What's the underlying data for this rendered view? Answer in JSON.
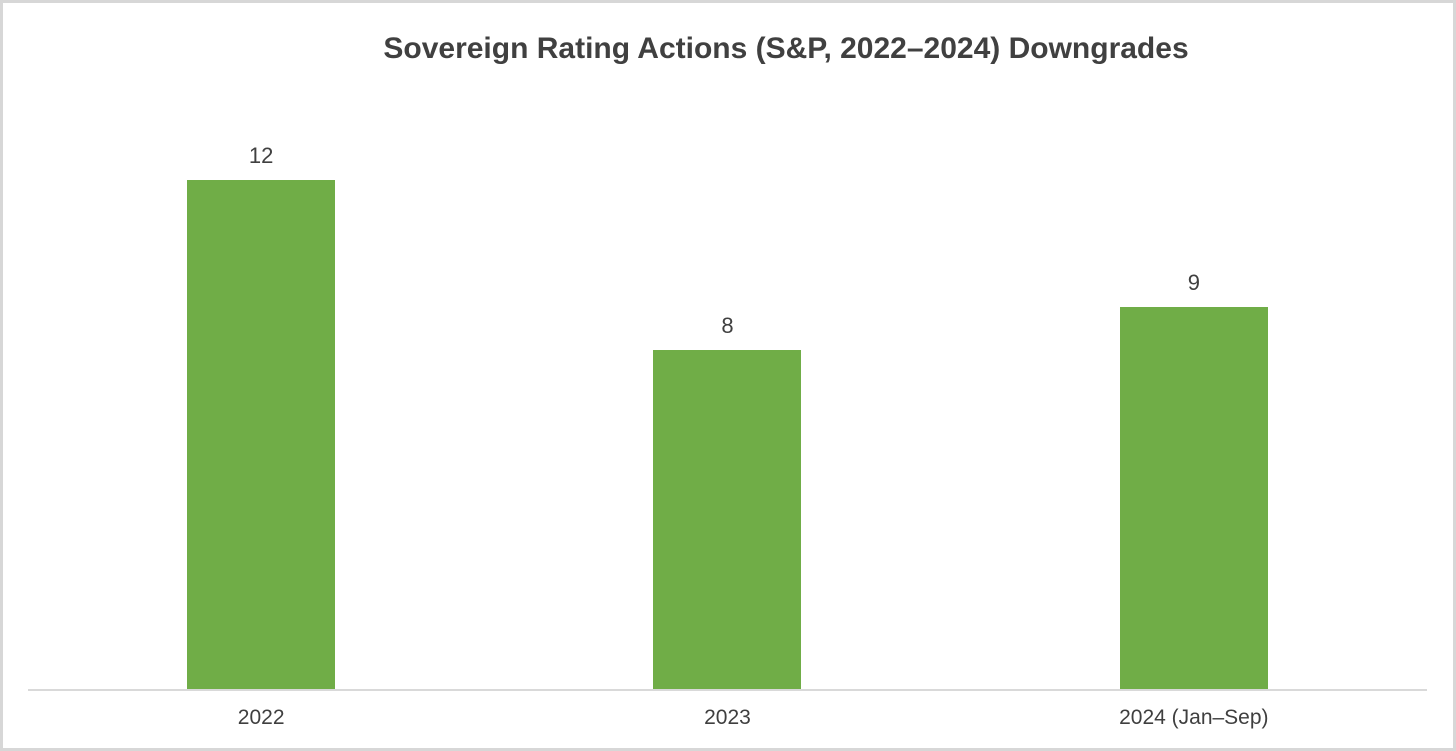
{
  "chart_data": {
    "type": "bar",
    "title": "Sovereign Rating Actions (S&P, 2022–2024) Downgrades",
    "categories": [
      "2022",
      "2023",
      "2024 (Jan–Sep)"
    ],
    "values": [
      12,
      8,
      9
    ],
    "data_labels": [
      "12",
      "8",
      "9"
    ],
    "xlabel": "",
    "ylabel": "",
    "ylim": [
      0,
      12
    ],
    "grid": false,
    "legend": false,
    "colors": {
      "bar_fill": "#70AD47",
      "axis_line": "#D9D9D9",
      "title_text": "#404040",
      "value_label_text": "#404040",
      "category_label_text": "#3F3F3F"
    }
  }
}
